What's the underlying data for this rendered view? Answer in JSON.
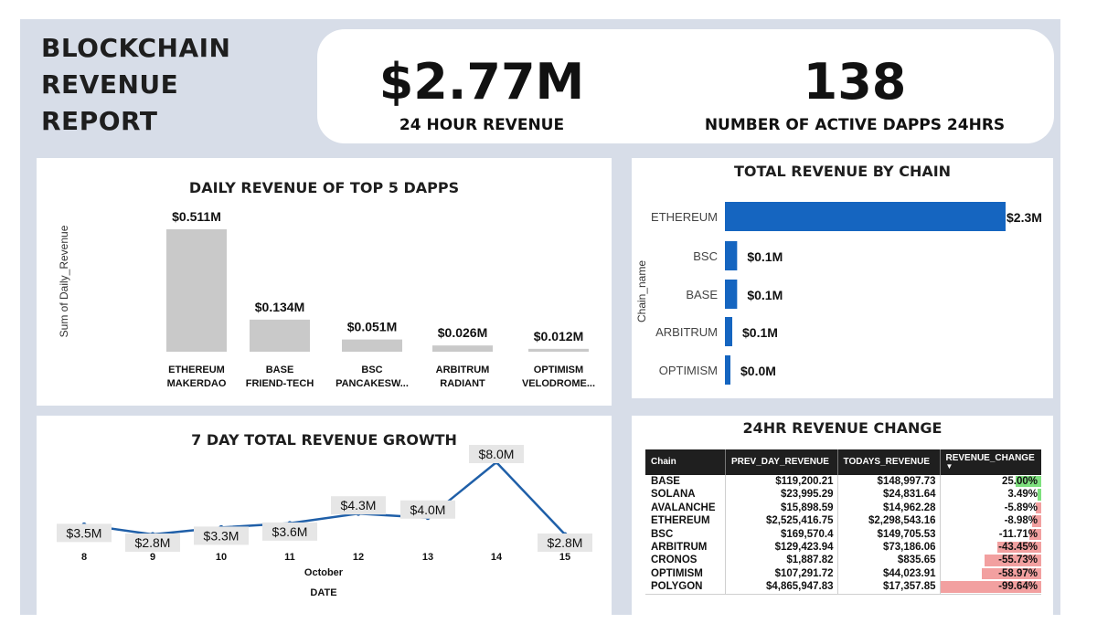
{
  "report_title": [
    "BLOCKCHAIN",
    "REVENUE",
    "REPORT"
  ],
  "kpis": {
    "revenue_24h": {
      "value": "$2.77M",
      "label": "24 HOUR REVENUE"
    },
    "active_dapps": {
      "value": "138",
      "label": "NUMBER OF ACTIVE DAPPS 24HRS"
    }
  },
  "colors": {
    "bar_gray": "#c9c9c9",
    "bar_blue": "#1565c0",
    "line_blue": "#1f5fa8",
    "positive": "#7ee07e",
    "negative": "#f2a0a0"
  },
  "chart_data": [
    {
      "type": "bar",
      "title": "DAILY REVENUE OF TOP 5 DAPPS",
      "ylabel": "Sum of Daily_Revenue",
      "categories": [
        [
          "ETHEREUM",
          "MAKERDAO"
        ],
        [
          "BASE",
          "FRIEND-TECH"
        ],
        [
          "BSC",
          "PANCAKESW..."
        ],
        [
          "ARBITRUM",
          "RADIANT"
        ],
        [
          "OPTIMISM",
          "VELODROME..."
        ]
      ],
      "values": [
        0.511,
        0.134,
        0.051,
        0.026,
        0.012
      ],
      "data_labels": [
        "$0.511M",
        "$0.134M",
        "$0.051M",
        "$0.026M",
        "$0.012M"
      ],
      "ylim": [
        0,
        0.511
      ]
    },
    {
      "type": "bar",
      "orientation": "horizontal",
      "title": "TOTAL REVENUE BY CHAIN",
      "ylabel": "Chain_name",
      "categories": [
        "ETHEREUM",
        "BSC",
        "BASE",
        "ARBITRUM",
        "OPTIMISM"
      ],
      "values": [
        2.3,
        0.1,
        0.1,
        0.06,
        0.03
      ],
      "data_labels": [
        "$2.3M",
        "$0.1M",
        "$0.1M",
        "$0.1M",
        "$0.0M"
      ],
      "xlim": [
        0,
        2.3
      ]
    },
    {
      "type": "line",
      "title": "7 DAY TOTAL REVENUE GROWTH",
      "x": [
        "8",
        "9",
        "10",
        "11",
        "12",
        "13",
        "14",
        "15"
      ],
      "values": [
        3.5,
        2.8,
        3.3,
        3.6,
        4.3,
        4.0,
        8.0,
        2.8
      ],
      "data_labels": [
        "$3.5M",
        "$2.8M",
        "$3.3M",
        "$3.6M",
        "$4.3M",
        "$4.0M",
        "$8.0M",
        "$2.8M"
      ],
      "xlabel_month": "October",
      "xlabel": "DATE",
      "ylim": [
        2.8,
        8.0
      ]
    },
    {
      "type": "table",
      "title": "24HR REVENUE CHANGE",
      "columns": [
        "Chain",
        "PREV_DAY_REVENUE",
        "TODAYS_REVENUE",
        "REVENUE_CHANGE"
      ],
      "sort_indicator": "▼",
      "rows": [
        {
          "chain": "BASE",
          "prev": "$119,200.21",
          "today": "$148,997.73",
          "change": "25.00%",
          "change_value": 25.0
        },
        {
          "chain": "SOLANA",
          "prev": "$23,995.29",
          "today": "$24,831.64",
          "change": "3.49%",
          "change_value": 3.49
        },
        {
          "chain": "AVALANCHE",
          "prev": "$15,898.59",
          "today": "$14,962.28",
          "change": "-5.89%",
          "change_value": -5.89
        },
        {
          "chain": "ETHEREUM",
          "prev": "$2,525,416.75",
          "today": "$2,298,543.16",
          "change": "-8.98%",
          "change_value": -8.98
        },
        {
          "chain": "BSC",
          "prev": "$169,570.4",
          "today": "$149,705.53",
          "change": "-11.71%",
          "change_value": -11.71
        },
        {
          "chain": "ARBITRUM",
          "prev": "$129,423.94",
          "today": "$73,186.06",
          "change": "-43.45%",
          "change_value": -43.45
        },
        {
          "chain": "CRONOS",
          "prev": "$1,887.82",
          "today": "$835.65",
          "change": "-55.73%",
          "change_value": -55.73
        },
        {
          "chain": "OPTIMISM",
          "prev": "$107,291.72",
          "today": "$44,023.91",
          "change": "-58.97%",
          "change_value": -58.97
        },
        {
          "chain": "POLYGON",
          "prev": "$4,865,947.83",
          "today": "$17,357.85",
          "change": "-99.64%",
          "change_value": -99.64
        }
      ]
    }
  ]
}
